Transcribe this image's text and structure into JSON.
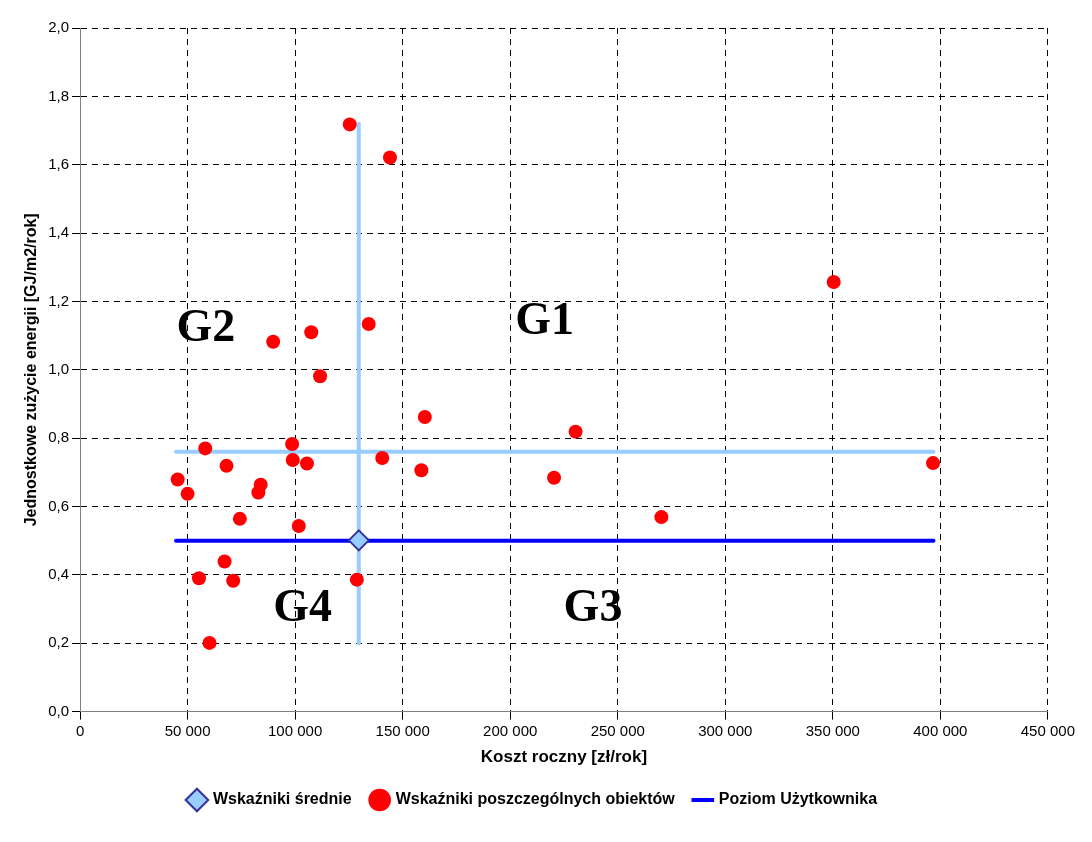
{
  "chart_data": {
    "type": "scatter",
    "xlabel": "Koszt roczny [zł/rok]",
    "ylabel": "Jednostkowe zużycie energii [GJ/m2/rok]",
    "xlim": [
      0,
      450000
    ],
    "ylim": [
      0,
      2
    ],
    "xticks": [
      0,
      {
        "value": 50000,
        "label": "50 000"
      },
      {
        "value": 100000,
        "label": "100 000"
      },
      {
        "value": 150000,
        "label": "150 000"
      },
      {
        "value": 200000,
        "label": "200 000"
      },
      {
        "value": 250000,
        "label": "250 000"
      },
      {
        "value": 300000,
        "label": "300 000"
      },
      {
        "value": 350000,
        "label": "350 000"
      },
      {
        "value": 400000,
        "label": "400 000"
      },
      {
        "value": 450000,
        "label": "450 000"
      }
    ],
    "yticks": [
      {
        "value": 0,
        "label": "0,0"
      },
      {
        "value": 0.2,
        "label": "0,2"
      },
      {
        "value": 0.4,
        "label": "0,4"
      },
      {
        "value": 0.6,
        "label": "0,6"
      },
      {
        "value": 0.8,
        "label": "0,8"
      },
      {
        "value": 1,
        "label": "1,0"
      },
      {
        "value": 1.2,
        "label": "1,2"
      },
      {
        "value": 1.4,
        "label": "1,4"
      },
      {
        "value": 1.6,
        "label": "1,6"
      },
      {
        "value": 1.8,
        "label": "1,8"
      },
      {
        "value": 2,
        "label": "2,0"
      }
    ],
    "grid": true,
    "legend": "bottom",
    "series": [
      {
        "type": "line",
        "color": "#99ccff",
        "marker": "none",
        "x": [
          129600,
          129600
        ],
        "values": [
          0.2,
          1.72
        ]
      },
      {
        "type": "line",
        "color": "#99ccff",
        "marker": "none",
        "x": [
          44600,
          396800
        ],
        "values": [
          0.76,
          0.76
        ]
      },
      {
        "type": "line",
        "name": "Poziom Użytkownika",
        "color": "#0000ff",
        "marker": "none",
        "x": [
          44600,
          396800
        ],
        "values": [
          0.5,
          0.5
        ]
      },
      {
        "type": "scatter",
        "name": "Wskaźniki poszczególnych obiektów",
        "color": "#ff0000",
        "marker": "circle",
        "x": [
          125400,
          144100,
          89800,
          107500,
          134200,
          111600,
          160300,
          58200,
          98600,
          68100,
          98900,
          105500,
          140500,
          158700,
          45400,
          50000,
          84000,
          82900,
          74300,
          101700,
          67200,
          55300,
          71200,
          128700,
          60200,
          350400,
          230400,
          220400,
          396600,
          270300
        ],
        "values": [
          1.718,
          1.621,
          1.082,
          1.11,
          1.134,
          0.981,
          0.862,
          0.77,
          0.783,
          0.719,
          0.736,
          0.726,
          0.742,
          0.706,
          0.679,
          0.637,
          0.664,
          0.641,
          0.564,
          0.543,
          0.439,
          0.39,
          0.383,
          0.386,
          0.201,
          1.257,
          0.819,
          0.684,
          0.727,
          0.569
        ]
      },
      {
        "type": "scatter",
        "name": "Wskaźniki średnie",
        "color": "#99ccff",
        "marker": "diamond",
        "x": [
          129600
        ],
        "values": [
          0.501
        ]
      }
    ],
    "annotations": [
      "G1",
      "G2",
      "G3",
      "G4"
    ]
  }
}
